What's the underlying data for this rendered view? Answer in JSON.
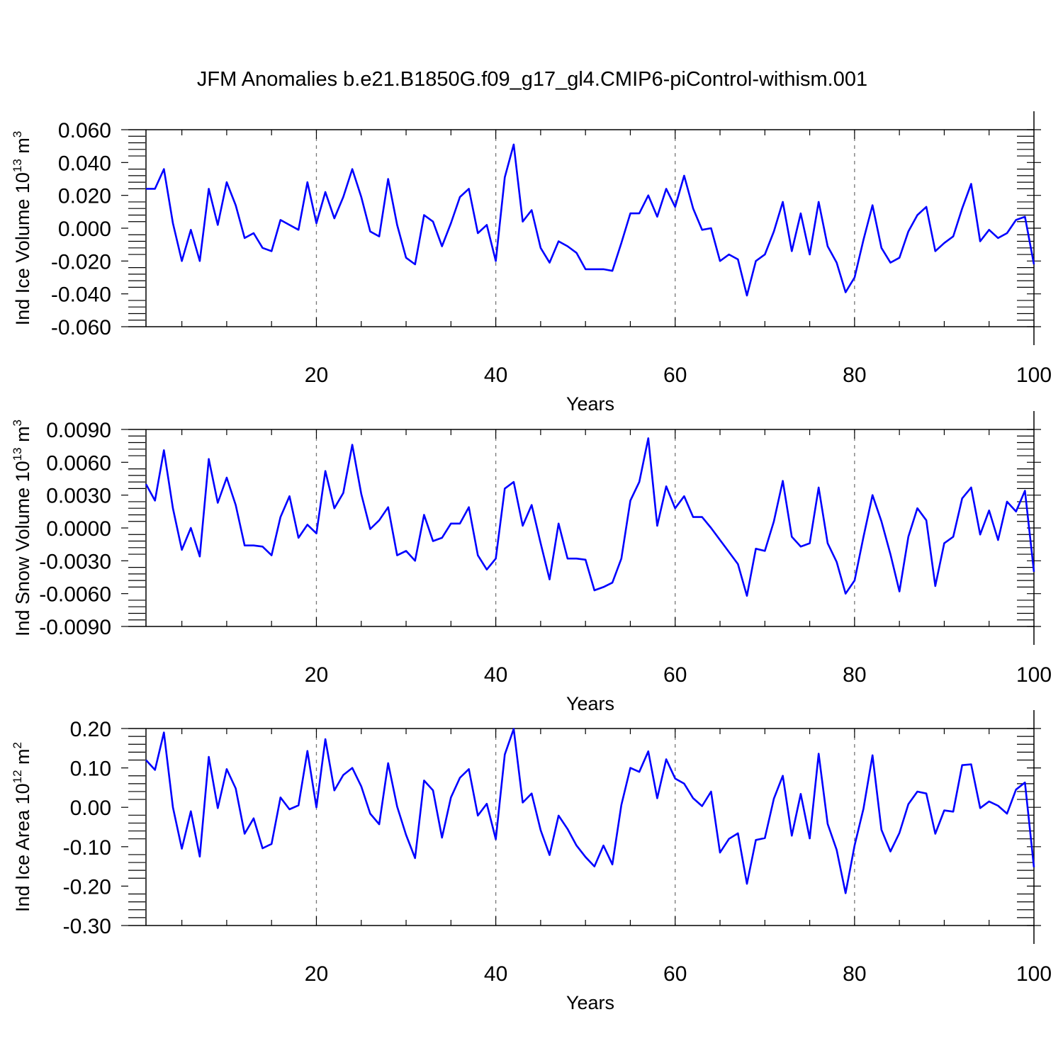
{
  "title": "JFM Anomalies b.e21.B1850G.f09_g17_gl4.CMIP6-piControl-withism.001",
  "chart_data": [
    {
      "type": "line",
      "xlabel": "Years",
      "ylabel": "Ind Ice Volume 10",
      "ylabel_exp": "13",
      "ylabel_unit": " m",
      "ylabel_unit_exp": "3",
      "xlim": [
        1,
        100
      ],
      "ylim": [
        -0.06,
        0.06
      ],
      "xticks": [
        20,
        40,
        60,
        80,
        100
      ],
      "xtick_labels": [
        "20",
        "40",
        "60",
        "80",
        "100"
      ],
      "yticks": [
        -0.06,
        -0.04,
        -0.02,
        0.0,
        0.02,
        0.04,
        0.06
      ],
      "ytick_labels": [
        "-0.060",
        "-0.040",
        "-0.020",
        "0.000",
        "0.020",
        "0.040",
        "0.060"
      ],
      "x_start": 1,
      "series": [
        {
          "name": "Ind Ice Volume",
          "color": "#0000ff",
          "values": [
            0.024,
            0.024,
            0.036,
            0.003,
            -0.02,
            -0.001,
            -0.02,
            0.024,
            0.002,
            0.028,
            0.014,
            -0.006,
            -0.003,
            -0.012,
            -0.014,
            0.005,
            0.002,
            -0.001,
            0.028,
            0.003,
            0.022,
            0.006,
            0.019,
            0.036,
            0.019,
            -0.002,
            -0.005,
            0.03,
            0.002,
            -0.018,
            -0.022,
            0.008,
            0.004,
            -0.011,
            0.003,
            0.019,
            0.024,
            -0.003,
            0.002,
            -0.02,
            0.031,
            0.051,
            0.004,
            0.011,
            -0.012,
            -0.021,
            -0.008,
            -0.011,
            -0.015,
            -0.025,
            -0.025,
            -0.025,
            -0.026,
            -0.009,
            0.009,
            0.009,
            0.02,
            0.007,
            0.024,
            0.013,
            0.032,
            0.012,
            -0.001,
            -0.0,
            -0.02,
            -0.016,
            -0.019,
            -0.041,
            -0.02,
            -0.016,
            -0.002,
            0.016,
            -0.014,
            0.009,
            -0.016,
            0.016,
            -0.011,
            -0.021,
            -0.039,
            -0.03,
            -0.007,
            0.014,
            -0.012,
            -0.021,
            -0.018,
            -0.002,
            0.008,
            0.013,
            -0.014,
            -0.009,
            -0.005,
            0.012,
            0.027,
            -0.008,
            -0.001,
            -0.006,
            -0.003,
            0.005,
            0.007,
            -0.022
          ]
        }
      ]
    },
    {
      "type": "line",
      "xlabel": "Years",
      "ylabel": "Ind Snow Volume 10",
      "ylabel_exp": "13",
      "ylabel_unit": " m",
      "ylabel_unit_exp": "3",
      "xlim": [
        1,
        100
      ],
      "ylim": [
        -0.009,
        0.009
      ],
      "xticks": [
        20,
        40,
        60,
        80,
        100
      ],
      "xtick_labels": [
        "20",
        "40",
        "60",
        "80",
        "100"
      ],
      "yticks": [
        -0.009,
        -0.006,
        -0.003,
        0.0,
        0.003,
        0.006,
        0.009
      ],
      "ytick_labels": [
        "-0.0090",
        "-0.0060",
        "-0.0030",
        "0.0000",
        "0.0030",
        "0.0060",
        "0.0090"
      ],
      "x_start": 1,
      "series": [
        {
          "name": "Ind Snow Volume",
          "color": "#0000ff",
          "values": [
            0.004,
            0.0025,
            0.0071,
            0.0018,
            -0.002,
            0.0,
            -0.0026,
            0.0063,
            0.0023,
            0.0046,
            0.0021,
            -0.0016,
            -0.0016,
            -0.0017,
            -0.0025,
            0.001,
            0.0029,
            -0.0009,
            0.0003,
            -0.0005,
            0.0052,
            0.0018,
            0.0032,
            0.0076,
            0.0031,
            -0.0001,
            0.0007,
            0.0019,
            -0.0025,
            -0.0021,
            -0.003,
            0.0012,
            -0.0012,
            -0.0009,
            0.0004,
            0.0004,
            0.0019,
            -0.0025,
            -0.0038,
            -0.0028,
            0.0036,
            0.0042,
            0.0002,
            0.0021,
            -0.0014,
            -0.0047,
            0.0004,
            -0.0028,
            -0.0028,
            -0.0029,
            -0.0057,
            -0.0054,
            -0.005,
            -0.0028,
            0.0025,
            0.0042,
            0.0082,
            0.0002,
            0.0038,
            0.0018,
            0.0029,
            0.001,
            0.001,
            0.0,
            -0.0011,
            -0.0022,
            -0.0033,
            -0.0062,
            -0.0019,
            -0.0021,
            0.0006,
            0.0043,
            -0.0008,
            -0.0017,
            -0.0014,
            0.0037,
            -0.0014,
            -0.0031,
            -0.006,
            -0.0048,
            -0.0008,
            0.003,
            0.0006,
            -0.0024,
            -0.0058,
            -0.0008,
            0.0018,
            0.0007,
            -0.0053,
            -0.0014,
            -0.0008,
            0.0027,
            0.0037,
            -0.0006,
            0.0016,
            -0.0011,
            0.0024,
            0.0015,
            0.0034,
            -0.004
          ]
        }
      ]
    },
    {
      "type": "line",
      "xlabel": "Years",
      "ylabel": "Ind Ice Area 10",
      "ylabel_exp": "12",
      "ylabel_unit": " m",
      "ylabel_unit_exp": "2",
      "xlim": [
        1,
        100
      ],
      "ylim": [
        -0.3,
        0.2
      ],
      "xticks": [
        20,
        40,
        60,
        80,
        100
      ],
      "xtick_labels": [
        "20",
        "40",
        "60",
        "80",
        "100"
      ],
      "yticks": [
        -0.3,
        -0.2,
        -0.1,
        0.0,
        0.1,
        0.2
      ],
      "ytick_labels": [
        "-0.30",
        "-0.20",
        "-0.10",
        "0.00",
        "0.10",
        "0.20"
      ],
      "x_start": 1,
      "series": [
        {
          "name": "Ind Ice Area",
          "color": "#0000ff",
          "values": [
            0.12,
            0.095,
            0.19,
            0.0,
            -0.105,
            -0.01,
            -0.125,
            0.128,
            -0.002,
            0.097,
            0.048,
            -0.067,
            -0.028,
            -0.104,
            -0.093,
            0.025,
            -0.005,
            0.005,
            0.143,
            0.0,
            0.173,
            0.043,
            0.082,
            0.1,
            0.053,
            -0.016,
            -0.043,
            0.112,
            0.002,
            -0.07,
            -0.129,
            0.068,
            0.043,
            -0.077,
            0.025,
            0.075,
            0.097,
            -0.021,
            0.009,
            -0.081,
            0.134,
            0.199,
            0.012,
            0.035,
            -0.058,
            -0.121,
            -0.021,
            -0.055,
            -0.097,
            -0.126,
            -0.15,
            -0.097,
            -0.145,
            0.006,
            0.1,
            0.09,
            0.142,
            0.023,
            0.122,
            0.073,
            0.06,
            0.023,
            0.003,
            0.04,
            -0.115,
            -0.08,
            -0.066,
            -0.194,
            -0.083,
            -0.078,
            0.022,
            0.08,
            -0.072,
            0.034,
            -0.079,
            0.136,
            -0.042,
            -0.108,
            -0.218,
            -0.097,
            -0.003,
            0.132,
            -0.057,
            -0.112,
            -0.065,
            0.008,
            0.04,
            0.035,
            -0.067,
            -0.008,
            -0.011,
            0.107,
            0.109,
            -0.002,
            0.015,
            0.004,
            -0.016,
            0.045,
            0.063,
            -0.152
          ]
        }
      ]
    }
  ]
}
